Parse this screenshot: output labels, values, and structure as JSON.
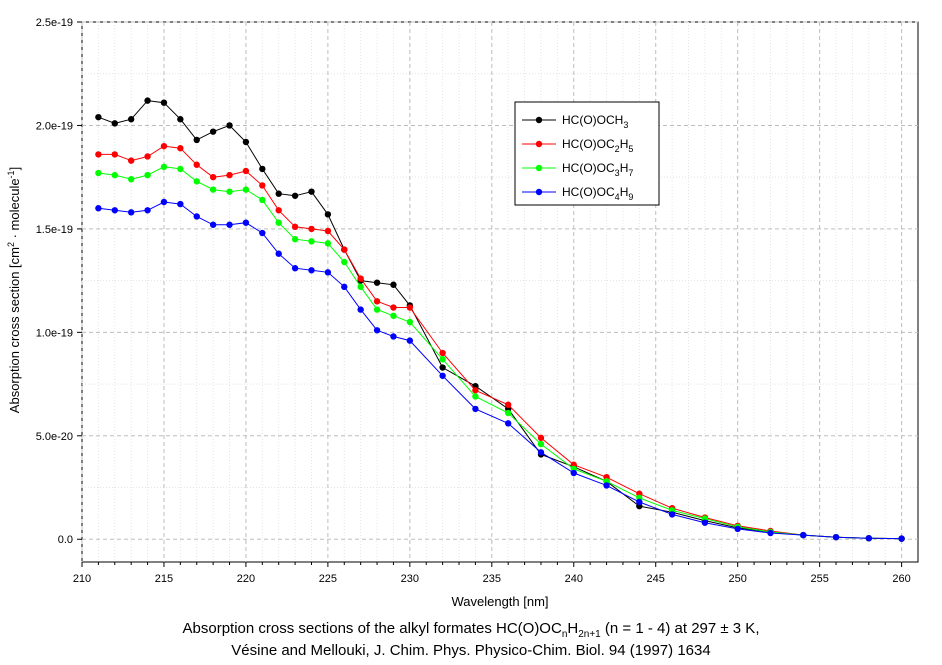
{
  "chart_data": {
    "type": "line",
    "xlabel": "Wavelength [nm]",
    "ylabel_main": "Absorption cross section [cm",
    "ylabel_sup1": "2",
    "ylabel_mid": " · molecule",
    "ylabel_sup2": "-1",
    "ylabel_end": "]",
    "xlim": [
      210,
      261
    ],
    "ylim": [
      -1.1e-20,
      2.5e-19
    ],
    "xticks": [
      210,
      215,
      220,
      225,
      230,
      235,
      240,
      245,
      250,
      255,
      260
    ],
    "yticks": [
      0,
      5e-20,
      1e-19,
      1.5e-19,
      2e-19,
      2.5e-19
    ],
    "ytick_labels": [
      "0.0",
      "5.0e-20",
      "1.0e-19",
      "1.5e-19",
      "2.0e-19",
      "2.5e-19"
    ],
    "grid": true,
    "legend_position": "upper-right",
    "series": [
      {
        "name": "HC(O)OCH3",
        "legend": {
          "pre": "HC(O)OCH",
          "sub1": "3",
          "mid": "",
          "sub2": ""
        },
        "color": "#000000",
        "x": [
          211,
          212,
          213,
          214,
          215,
          216,
          217,
          218,
          219,
          220,
          221,
          222,
          223,
          224,
          225,
          226,
          227,
          228,
          229,
          230,
          232,
          234,
          236,
          238,
          240,
          242,
          244,
          246,
          248,
          250,
          252,
          254,
          256,
          258,
          260
        ],
        "y": [
          2.04e-19,
          2.01e-19,
          2.03e-19,
          2.12e-19,
          2.11e-19,
          2.03e-19,
          1.93e-19,
          1.97e-19,
          2e-19,
          1.92e-19,
          1.79e-19,
          1.67e-19,
          1.66e-19,
          1.68e-19,
          1.57e-19,
          1.4e-19,
          1.25e-19,
          1.24e-19,
          1.23e-19,
          1.13e-19,
          8.3e-20,
          7.4e-20,
          6.3e-20,
          4.1e-20,
          3.5e-20,
          2.8e-20,
          1.6e-20,
          1.3e-20,
          9e-21,
          5.5e-21,
          3.5e-21,
          2e-21,
          1e-21,
          5e-22,
          3e-22
        ]
      },
      {
        "name": "HC(O)OC2H5",
        "legend": {
          "pre": "HC(O)OC",
          "sub1": "2",
          "mid": "H",
          "sub2": "5"
        },
        "color": "#ff0000",
        "x": [
          211,
          212,
          213,
          214,
          215,
          216,
          217,
          218,
          219,
          220,
          221,
          222,
          223,
          224,
          225,
          226,
          227,
          228,
          229,
          230,
          232,
          234,
          236,
          238,
          240,
          242,
          244,
          246,
          248,
          250,
          252,
          254,
          256,
          258,
          260
        ],
        "y": [
          1.86e-19,
          1.86e-19,
          1.83e-19,
          1.85e-19,
          1.9e-19,
          1.89e-19,
          1.81e-19,
          1.75e-19,
          1.76e-19,
          1.78e-19,
          1.71e-19,
          1.59e-19,
          1.51e-19,
          1.5e-19,
          1.49e-19,
          1.4e-19,
          1.26e-19,
          1.15e-19,
          1.12e-19,
          1.12e-19,
          9e-20,
          7.2e-20,
          6.5e-20,
          4.9e-20,
          3.6e-20,
          3e-20,
          2.2e-20,
          1.5e-20,
          1.05e-20,
          6.5e-21,
          4e-21,
          2e-21,
          1e-21,
          5e-22,
          3e-22
        ]
      },
      {
        "name": "HC(O)OC3H7",
        "legend": {
          "pre": "HC(O)OC",
          "sub1": "3",
          "mid": "H",
          "sub2": "7"
        },
        "color": "#00ff00",
        "x": [
          211,
          212,
          213,
          214,
          215,
          216,
          217,
          218,
          219,
          220,
          221,
          222,
          223,
          224,
          225,
          226,
          227,
          228,
          229,
          230,
          232,
          234,
          236,
          238,
          240,
          242,
          244,
          246,
          248,
          250,
          252,
          254,
          256,
          258,
          260
        ],
        "y": [
          1.77e-19,
          1.76e-19,
          1.74e-19,
          1.76e-19,
          1.8e-19,
          1.79e-19,
          1.73e-19,
          1.69e-19,
          1.68e-19,
          1.69e-19,
          1.64e-19,
          1.53e-19,
          1.45e-19,
          1.44e-19,
          1.43e-19,
          1.34e-19,
          1.22e-19,
          1.11e-19,
          1.08e-19,
          1.05e-19,
          8.7e-20,
          6.9e-20,
          6.1e-20,
          4.6e-20,
          3.4e-20,
          2.8e-20,
          2e-20,
          1.4e-20,
          1e-20,
          6e-21,
          3.5e-21,
          2e-21,
          1e-21,
          5e-22,
          3e-22
        ]
      },
      {
        "name": "HC(O)OC4H9",
        "legend": {
          "pre": "HC(O)OC",
          "sub1": "4",
          "mid": "H",
          "sub2": "9"
        },
        "color": "#0000ff",
        "x": [
          211,
          212,
          213,
          214,
          215,
          216,
          217,
          218,
          219,
          220,
          221,
          222,
          223,
          224,
          225,
          226,
          227,
          228,
          229,
          230,
          232,
          234,
          236,
          238,
          240,
          242,
          244,
          246,
          248,
          250,
          252,
          254,
          256,
          258,
          260
        ],
        "y": [
          1.6e-19,
          1.59e-19,
          1.58e-19,
          1.59e-19,
          1.63e-19,
          1.62e-19,
          1.56e-19,
          1.52e-19,
          1.52e-19,
          1.53e-19,
          1.48e-19,
          1.38e-19,
          1.31e-19,
          1.3e-19,
          1.29e-19,
          1.22e-19,
          1.11e-19,
          1.01e-19,
          9.8e-20,
          9.6e-20,
          7.9e-20,
          6.3e-20,
          5.6e-20,
          4.2e-20,
          3.2e-20,
          2.6e-20,
          1.8e-20,
          1.2e-20,
          8e-21,
          5e-21,
          3e-21,
          2e-21,
          1e-21,
          5e-22,
          3e-22
        ]
      }
    ]
  },
  "caption": {
    "line1_pre": "Absorption cross sections of the alkyl formates HC(O)OC",
    "line1_sub1": "n",
    "line1_mid": "H",
    "line1_sub2": "2n+1",
    "line1_post": " (n = 1 - 4) at 297 ± 3 K,",
    "line2": "Vésine and Mellouki, J. Chim. Phys. Physico-Chim. Biol. 94 (1997) 1634"
  }
}
